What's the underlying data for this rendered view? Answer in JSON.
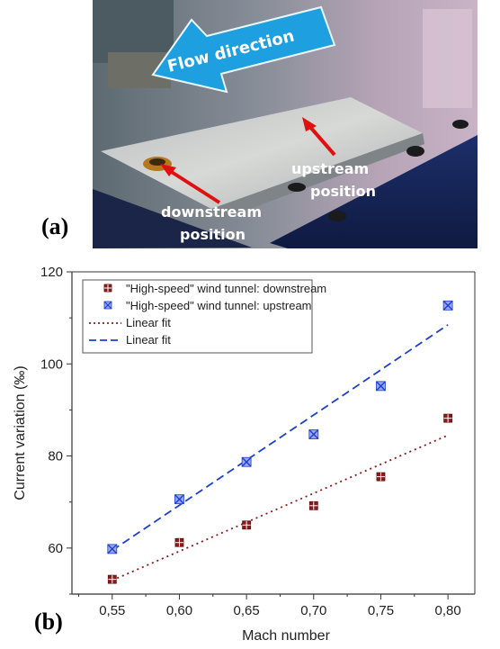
{
  "panel_a": {
    "label": "(a)",
    "flow_direction": "Flow direction",
    "upstream_line1": "upstream",
    "upstream_line2": "position",
    "downstream_line1": "downstream",
    "downstream_line2": "position",
    "colors": {
      "arrow": "#1ea0e0",
      "pointer": "#e01010"
    }
  },
  "panel_b": {
    "label": "(b)"
  },
  "chart_data": {
    "type": "scatter",
    "xlabel": "Mach number",
    "ylabel": "Current variation (‰)",
    "xlim": [
      0.52,
      0.82
    ],
    "ylim": [
      50,
      120
    ],
    "xticks": [
      "0,55",
      "0,60",
      "0,65",
      "0,70",
      "0,75",
      "0,80"
    ],
    "xtick_values": [
      0.55,
      0.6,
      0.65,
      0.7,
      0.75,
      0.8
    ],
    "yticks": [
      "60",
      "80",
      "100",
      "120"
    ],
    "ytick_values": [
      60,
      80,
      100,
      120
    ],
    "grid": false,
    "legend_position": "top-left",
    "series": [
      {
        "name": "\"High-speed\" wind tunnel: downstream",
        "marker": "square-crossed",
        "color": "#8b1a1a",
        "x": [
          0.55,
          0.6,
          0.65,
          0.7,
          0.75,
          0.8
        ],
        "y": [
          53.2,
          61.2,
          65.0,
          69.2,
          75.5,
          88.2
        ]
      },
      {
        "name": "\"High-speed\" wind tunnel: upstream",
        "marker": "circle-x",
        "color": "#1c3fd4",
        "x": [
          0.55,
          0.6,
          0.65,
          0.7,
          0.75,
          0.8
        ],
        "y": [
          59.8,
          70.6,
          78.7,
          84.7,
          95.2,
          112.7
        ]
      }
    ],
    "fits": [
      {
        "name": "Linear fit",
        "style": "dotted",
        "color": "#8b1a1a",
        "x": [
          0.55,
          0.8
        ],
        "y": [
          53.0,
          84.5
        ]
      },
      {
        "name": "Linear fit",
        "style": "dashed",
        "color": "#1c3fd4",
        "x": [
          0.55,
          0.8
        ],
        "y": [
          59.5,
          108.5
        ]
      }
    ]
  }
}
